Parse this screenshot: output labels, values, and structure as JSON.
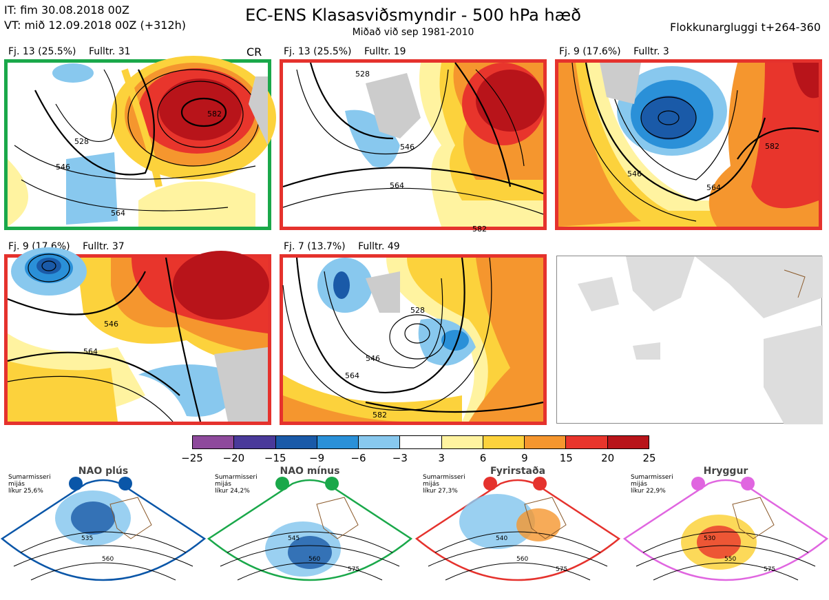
{
  "header": {
    "it_line": "IT: fim 30.08.2018 00Z",
    "vt_line": "VT: mið 12.09.2018 00Z  (+312h)",
    "title": "EC-ENS Klasasviðsmyndir - 500 hPa hæð",
    "subtitle": "Miðað við sep 1981-2010",
    "window": "Flokkunargluggi t+264-360"
  },
  "panels": [
    {
      "cluster": "Fj. 13 (25.5%)",
      "rep": "Fulltr. 31",
      "regime_tag": "CR",
      "frame_color": "#1aa84a",
      "contours": [
        "528",
        "546",
        "564",
        "582"
      ]
    },
    {
      "cluster": "Fj. 13 (25.5%)",
      "rep": "Fulltr. 19",
      "regime_tag": "",
      "frame_color": "#e5322d",
      "contours": [
        "528",
        "546",
        "564",
        "582"
      ]
    },
    {
      "cluster": "Fj. 9 (17.6%)",
      "rep": "Fulltr. 3",
      "regime_tag": "",
      "frame_color": "#e5322d",
      "contours": [
        "546",
        "564",
        "582"
      ]
    },
    {
      "cluster": "Fj. 9 (17.6%)",
      "rep": "Fulltr. 37",
      "regime_tag": "",
      "frame_color": "#e5322d",
      "contours": [
        "546",
        "564"
      ]
    },
    {
      "cluster": "Fj. 7 (13.7%)",
      "rep": "Fulltr. 49",
      "regime_tag": "",
      "frame_color": "#e5322d",
      "contours": [
        "528",
        "546",
        "564",
        "582"
      ]
    }
  ],
  "colorbar": {
    "colors": [
      "#8e4a9c",
      "#4a3a9a",
      "#1a5aa8",
      "#2a90d8",
      "#88c8ee",
      "#ffffff",
      "#fff3a0",
      "#fcd23c",
      "#f5962e",
      "#e8352c",
      "#b8141a"
    ],
    "ticks": [
      "−25",
      "−20",
      "−15",
      "−9",
      "−6",
      "−3",
      "3",
      "6",
      "9",
      "15",
      "20",
      "25"
    ]
  },
  "regimes": [
    {
      "name": "NAO plús",
      "note": [
        "Sumarmisseri",
        "mijás",
        "líkur 25,6%"
      ],
      "color": "#0a56a8",
      "contours": [
        "535",
        "560"
      ]
    },
    {
      "name": "NAO mínus",
      "note": [
        "Sumarmisseri",
        "mijás",
        "líkur 24,2%"
      ],
      "color": "#1aa84a",
      "contours": [
        "545",
        "560",
        "575"
      ]
    },
    {
      "name": "Fyrirstaða",
      "note": [
        "Sumarmisseri",
        "mijás",
        "líkur 27,3%"
      ],
      "color": "#e5322d",
      "contours": [
        "540",
        "560",
        "575"
      ]
    },
    {
      "name": "Hryggur",
      "note": [
        "Sumarmisseri",
        "mijás",
        "líkur 22,9%"
      ],
      "color": "#e066e0",
      "contours": [
        "530",
        "550",
        "575"
      ]
    }
  ]
}
